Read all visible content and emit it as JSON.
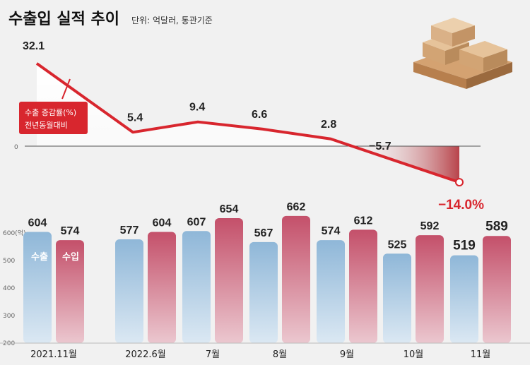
{
  "title": "수출입 실적 추이",
  "unit_note": "단위: 억달러, 통관기준",
  "line_legend": [
    "수출 증감률(%)",
    "전년동월대비"
  ],
  "bar_legend": {
    "export": "수출",
    "import": "수입"
  },
  "y_unit": "(억)",
  "colors": {
    "line": "#d8262e",
    "export": "#8fb7d8",
    "import": "#c4506a",
    "neg_area": "#b8434a"
  },
  "chart_data": [
    {
      "type": "line",
      "x": [
        "2021.11월",
        "2022.6월",
        "7월",
        "8월",
        "9월",
        "10월",
        "11월"
      ],
      "values": [
        32.1,
        5.4,
        9.4,
        6.6,
        2.8,
        -5.7,
        -14.0
      ],
      "labels": [
        "32.1",
        "5.4",
        "9.4",
        "6.6",
        "2.8",
        "−5.7",
        "−14.0%"
      ]
    },
    {
      "type": "bar",
      "categories": [
        "2021.11월",
        "2022.6월",
        "7월",
        "8월",
        "9월",
        "10월",
        "11월"
      ],
      "series": [
        {
          "name": "수출",
          "values": [
            604,
            577,
            607,
            567,
            574,
            525,
            519
          ]
        },
        {
          "name": "수입",
          "values": [
            574,
            604,
            654,
            662,
            612,
            592,
            589
          ]
        }
      ],
      "yticks": [
        "600(억)",
        "500",
        "400",
        "300",
        "200"
      ],
      "ylim": [
        200,
        670
      ]
    }
  ]
}
